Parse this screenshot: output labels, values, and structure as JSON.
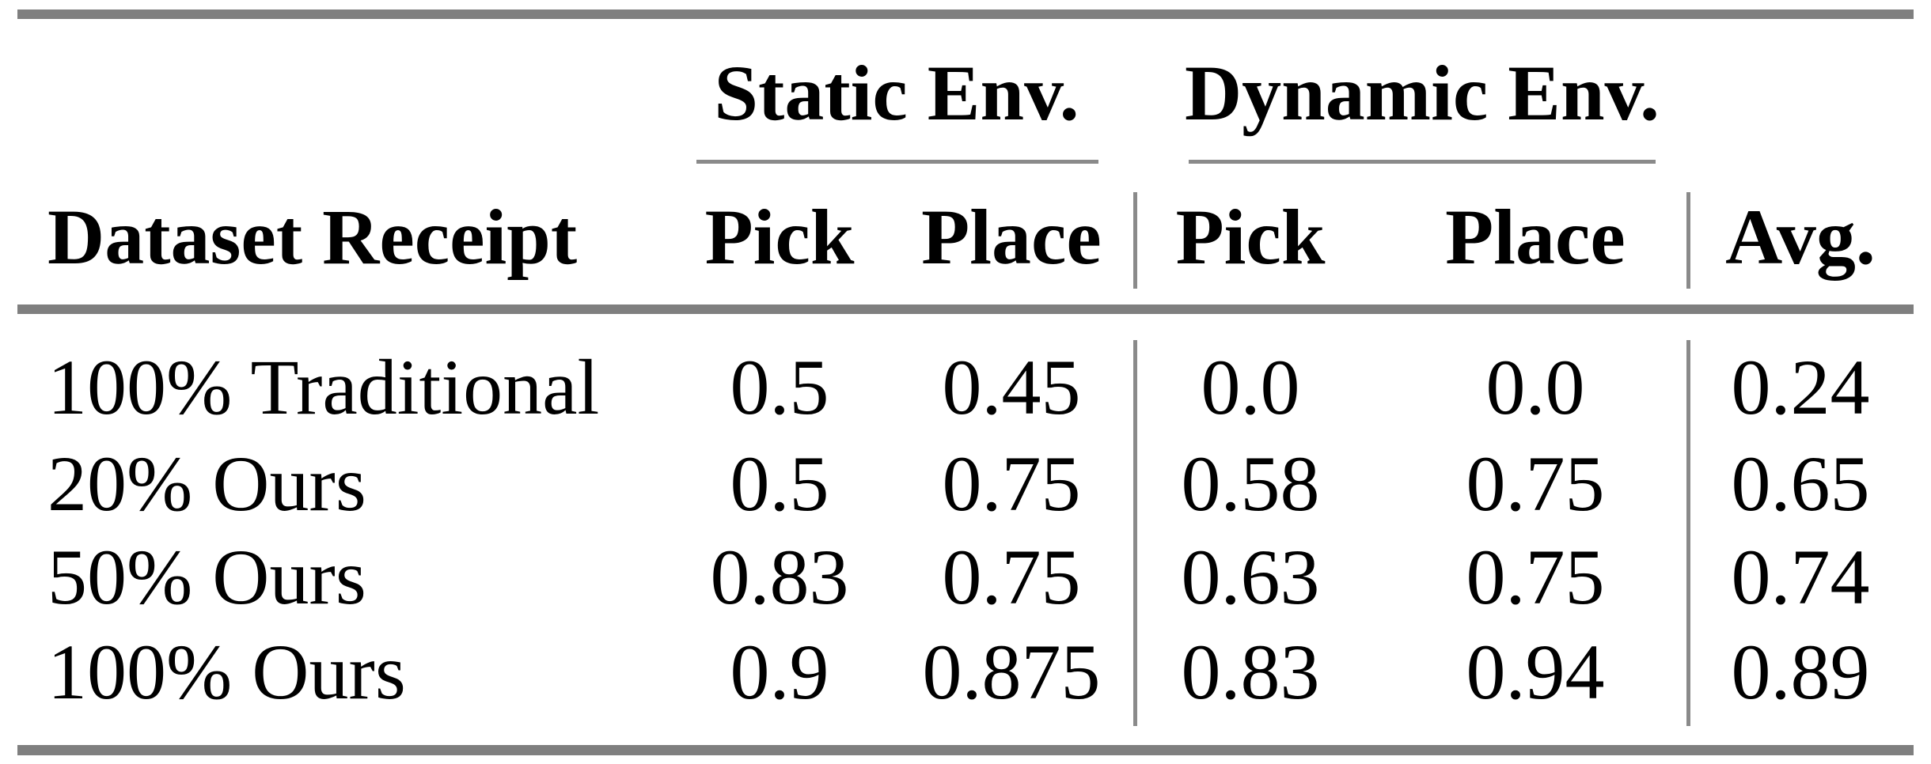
{
  "table": {
    "column_groups": [
      {
        "label": "Static Env."
      },
      {
        "label": "Dynamic Env."
      }
    ],
    "header": {
      "row_label": "Dataset Receipt",
      "columns": [
        "Pick",
        "Place",
        "Pick",
        "Place",
        "Avg."
      ]
    },
    "rows": [
      {
        "label": "100% Traditional",
        "cells": [
          "0.5",
          "0.45",
          "0.0",
          "0.0",
          "0.24"
        ]
      },
      {
        "label": "20% Ours",
        "cells": [
          "0.5",
          "0.75",
          "0.58",
          "0.75",
          "0.65"
        ]
      },
      {
        "label": "50% Ours",
        "cells": [
          "0.83",
          "0.75",
          "0.63",
          "0.75",
          "0.74"
        ]
      },
      {
        "label": "100% Ours",
        "cells": [
          "0.9",
          "0.875",
          "0.83",
          "0.94",
          "0.89"
        ]
      }
    ],
    "colors": {
      "rule_gray": "#7f7f7f",
      "thin_rule_gray": "#8a8a8a",
      "text": "#000000",
      "background": "#ffffff"
    }
  },
  "chart_data": {
    "type": "table",
    "title": "",
    "column_groups": [
      "Static Env.",
      "Static Env.",
      "Dynamic Env.",
      "Dynamic Env.",
      ""
    ],
    "columns": [
      "Dataset Receipt",
      "Pick",
      "Place",
      "Pick",
      "Place",
      "Avg."
    ],
    "rows": [
      [
        "100% Traditional",
        0.5,
        0.45,
        0.0,
        0.0,
        0.24
      ],
      [
        "20% Ours",
        0.5,
        0.75,
        0.58,
        0.75,
        0.65
      ],
      [
        "50% Ours",
        0.83,
        0.75,
        0.63,
        0.75,
        0.74
      ],
      [
        "100% Ours",
        0.9,
        0.875,
        0.83,
        0.94,
        0.89
      ]
    ]
  }
}
